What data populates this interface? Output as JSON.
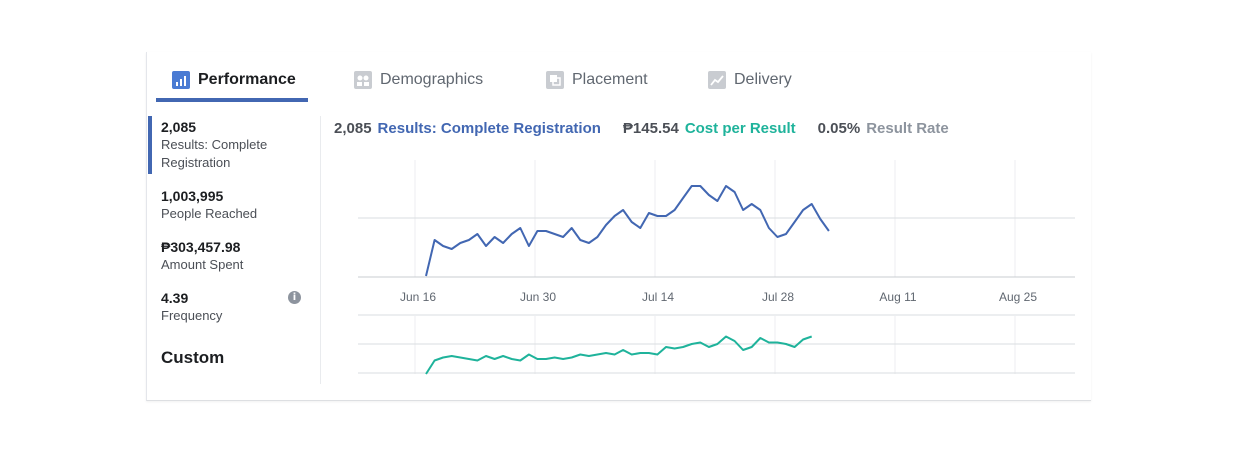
{
  "tabs": [
    {
      "label": "Performance",
      "icon": "bar-chart-icon",
      "active": true
    },
    {
      "label": "Demographics",
      "icon": "people-icon",
      "active": false
    },
    {
      "label": "Placement",
      "icon": "placement-icon",
      "active": false
    },
    {
      "label": "Delivery",
      "icon": "delivery-icon",
      "active": false
    }
  ],
  "metrics": [
    {
      "value": "2,085",
      "label": "Results: Complete Registration",
      "active": true
    },
    {
      "value": "1,003,995",
      "label": "People Reached"
    },
    {
      "value": "₱303,457.98",
      "label": "Amount Spent"
    },
    {
      "value": "4.39",
      "label": "Frequency",
      "info": "i"
    }
  ],
  "custom_label": "Custom",
  "summary": {
    "results_value": "2,085",
    "results_label": "Results: Complete Registration",
    "cost_value": "₱145.54",
    "cost_label": "Cost per Result",
    "rate_value": "0.05%",
    "rate_label": "Result Rate"
  },
  "colors": {
    "accent": "#4267b2",
    "teal": "#1fb39b",
    "grey": "#8d949e"
  },
  "chart_data": [
    {
      "type": "line",
      "x_ticks": [
        "Jun 16",
        "Jun 30",
        "Jul 14",
        "Jul 28",
        "Aug 11",
        "Aug 25"
      ],
      "x_start": "Jun 16",
      "series": [
        {
          "color": "#4267b2",
          "values": [
            0,
            12,
            10,
            9,
            11,
            12,
            14,
            10,
            13,
            11,
            14,
            16,
            10,
            15,
            15,
            14,
            13,
            16,
            12,
            11,
            13,
            17,
            20,
            22,
            18,
            16,
            21,
            20,
            20,
            22,
            26,
            30,
            30,
            27,
            25,
            30,
            28,
            22,
            24,
            22,
            16,
            13,
            14,
            18,
            22,
            24,
            19,
            15
          ]
        }
      ]
    },
    {
      "type": "line",
      "series": [
        {
          "color": "#1fb39b",
          "values": [
            0,
            9,
            11,
            12,
            11,
            10,
            9,
            12,
            10,
            12,
            10,
            9,
            13,
            10,
            10,
            11,
            10,
            11,
            13,
            12,
            13,
            14,
            13,
            16,
            13,
            14,
            14,
            13,
            18,
            17,
            18,
            20,
            21,
            18,
            20,
            25,
            22,
            16,
            18,
            24,
            21,
            21,
            20,
            18,
            23,
            25
          ]
        }
      ]
    }
  ]
}
